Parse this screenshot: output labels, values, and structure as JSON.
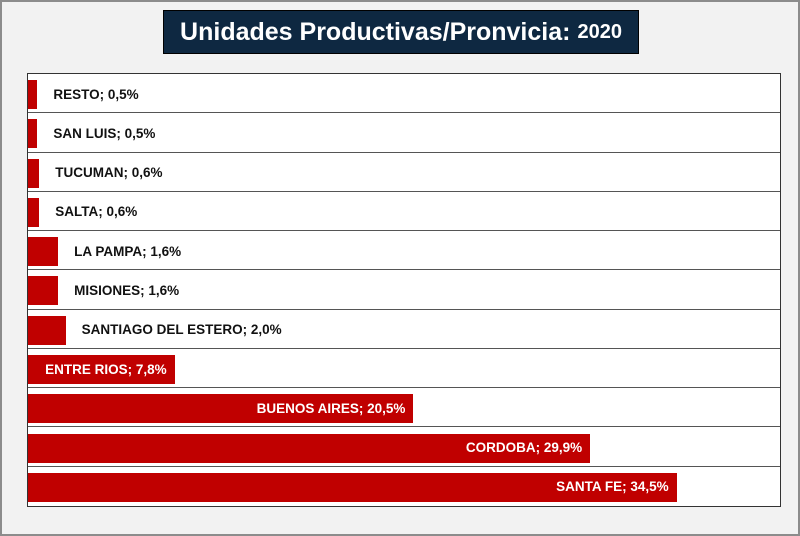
{
  "title": {
    "main": "Unidades Productivas/Pronvicia:",
    "year": "2020"
  },
  "colors": {
    "bar": "#c00000",
    "title_bg": "#0e2841"
  },
  "chart_data": {
    "type": "bar",
    "orientation": "horizontal",
    "title": "Unidades Productivas/Pronvicia: 2020",
    "unit": "%",
    "xlim": [
      0,
      40
    ],
    "categories": [
      "RESTO",
      "SAN LUIS",
      "TUCUMAN",
      "SALTA",
      "LA PAMPA",
      "MISIONES",
      "SANTIAGO DEL ESTERO",
      "ENTRE RIOS",
      "BUENOS AIRES",
      "CORDOBA",
      "SANTA FE"
    ],
    "values": [
      0.5,
      0.5,
      0.6,
      0.6,
      1.6,
      1.6,
      2.0,
      7.8,
      20.5,
      29.9,
      34.5
    ],
    "labels": [
      "RESTO; 0,5%",
      "SAN LUIS; 0,5%",
      "TUCUMAN; 0,6%",
      "SALTA; 0,6%",
      "LA PAMPA; 1,6%",
      "MISIONES; 1,6%",
      "SANTIAGO DEL ESTERO; 2,0%",
      "ENTRE RIOS; 7,8%",
      "BUENOS AIRES; 20,5%",
      "CORDOBA; 29,9%",
      "SANTA FE; 34,5%"
    ]
  }
}
